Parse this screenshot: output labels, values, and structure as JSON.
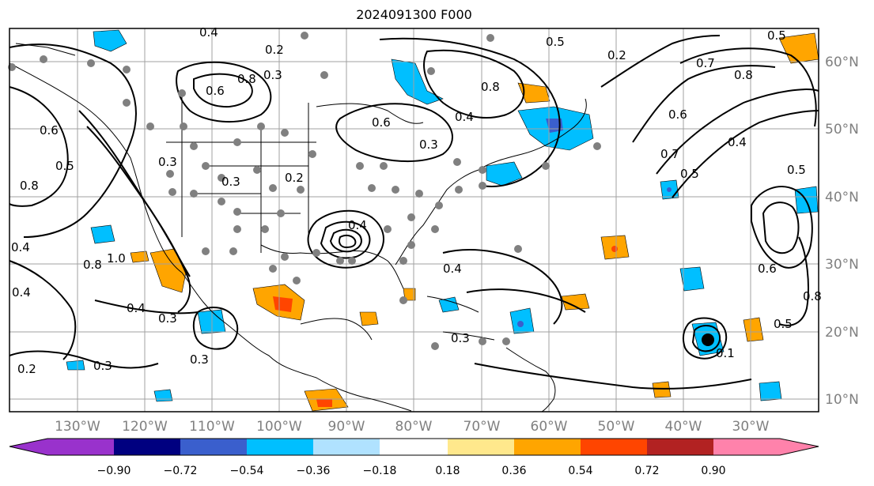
{
  "title": "2024091300 F000",
  "lat_labels": [
    "60°N",
    "50°N",
    "40°N",
    "30°N",
    "20°N",
    "10°N"
  ],
  "lon_labels": [
    "130°W",
    "120°W",
    "110°W",
    "100°W",
    "90°W",
    "80°W",
    "70°W",
    "60°W",
    "50°W",
    "40°W",
    "30°W"
  ],
  "colorbar": {
    "ticks": [
      "−0.90",
      "−0.72",
      "−0.54",
      "−0.36",
      "−0.18",
      "0.18",
      "0.36",
      "0.54",
      "0.72",
      "0.90"
    ],
    "colors": [
      "#9932cc",
      "#000080",
      "#3a5fcd",
      "#00bfff",
      "#b0e2ff",
      "#ffffff",
      "#ffe88c",
      "#ffa500",
      "#ff4500",
      "#b22222",
      "#ff82ab"
    ]
  },
  "contour_labels": [
    "0.4",
    "0.2",
    "0.3",
    "0.5",
    "0.6",
    "0.8",
    "0.4",
    "0.3",
    "0.6",
    "0.8",
    "0.5",
    "0.7",
    "0.8",
    "0.6",
    "0.5",
    "0.7",
    "0.4",
    "0.5",
    "0.6",
    "0.5",
    "0.8",
    "0.1",
    "0.3",
    "0.2",
    "0.4",
    "0.4",
    "0.3",
    "1.0",
    "0.8",
    "0.4",
    "0.3",
    "0.2",
    "0.3",
    "0.3",
    "0.4",
    "0.3",
    "0.6",
    "0.4",
    "0.5",
    "0.8",
    "0.2"
  ]
}
